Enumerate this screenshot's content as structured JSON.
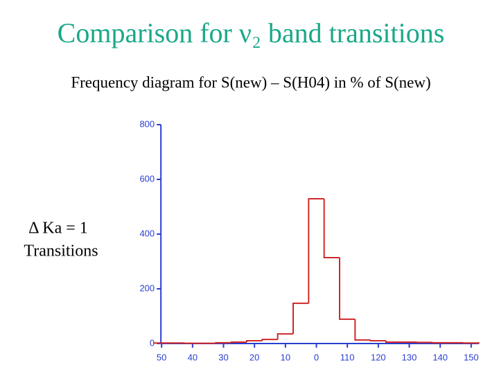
{
  "chart_data": {
    "type": "histogram",
    "title": "Comparison for ν₂ band transitions",
    "subtitle": "Frequency diagram for S(new) – S(H04) in % of S(new)",
    "annotations": [
      "Δ Ka = 1",
      "Transitions"
    ],
    "bins": [
      -52.5,
      -47.5,
      -42.5,
      -37.5,
      -32.5,
      -27.5,
      -22.5,
      -17.5,
      -12.5,
      -7.5,
      -2.5,
      2.5,
      7.5,
      12.5,
      17.5,
      22.5,
      27.5,
      32.5,
      37.5,
      42.5,
      47.5,
      52.5
    ],
    "values": [
      2,
      2,
      1,
      1,
      3,
      5,
      10,
      15,
      35,
      147,
      529,
      314,
      89,
      13,
      10,
      5,
      5,
      4,
      3,
      3,
      2
    ],
    "color": "#d02828",
    "axis_color": "#2a3fd0",
    "xlim": [
      -52.5,
      52.5
    ],
    "xticks": [
      {
        "value": -50,
        "label": "50"
      },
      {
        "value": -40,
        "label": "40"
      },
      {
        "value": -30,
        "label": "30"
      },
      {
        "value": -20,
        "label": "20"
      },
      {
        "value": -10,
        "label": "10"
      },
      0,
      {
        "value": 10,
        "label": "110"
      },
      {
        "value": 20,
        "label": "120"
      },
      {
        "value": 30,
        "label": "130"
      },
      {
        "value": 40,
        "label": "140"
      },
      {
        "value": 50,
        "label": "150"
      }
    ],
    "ylim": [
      0,
      800
    ],
    "yticks": [
      0,
      200,
      400,
      600,
      800
    ],
    "grid": false
  }
}
